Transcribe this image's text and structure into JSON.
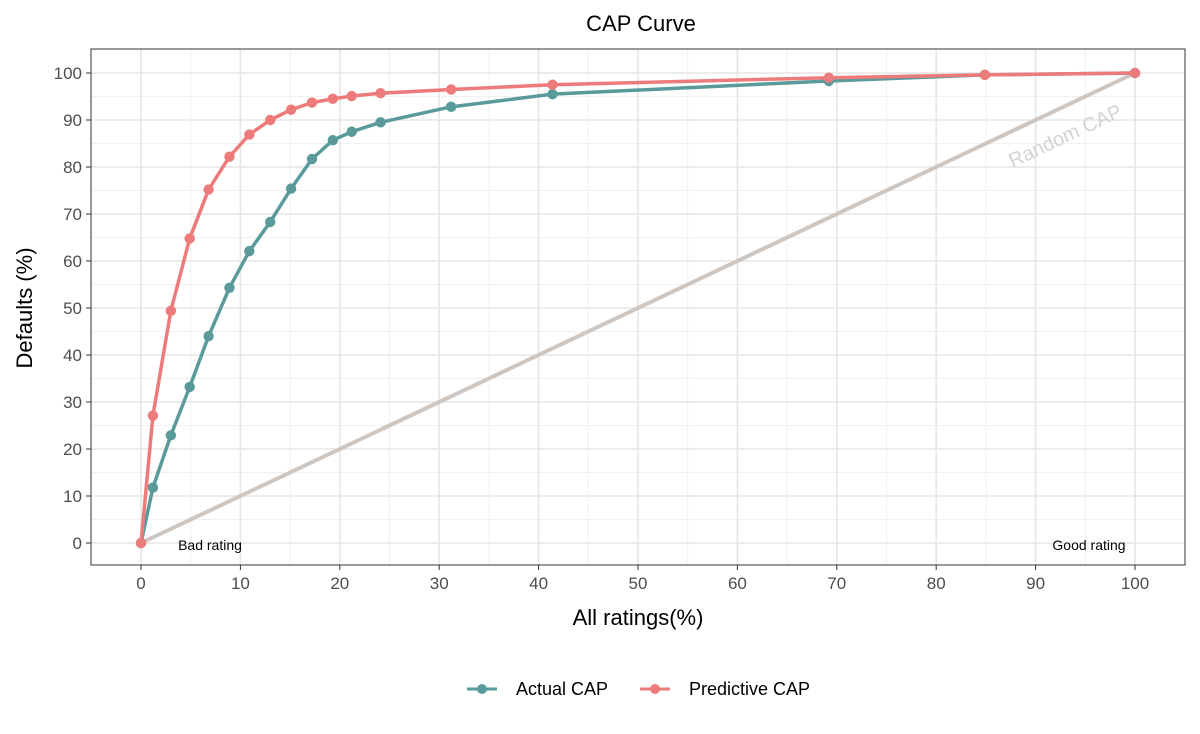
{
  "chart_data": {
    "type": "line",
    "title": "CAP Curve",
    "xlabel": "All ratings(%)",
    "ylabel": "Defaults (%)",
    "xlim": [
      0,
      100
    ],
    "ylim": [
      0,
      100
    ],
    "x_ticks": [
      0,
      10,
      20,
      30,
      40,
      50,
      60,
      70,
      80,
      90,
      100
    ],
    "y_ticks": [
      0,
      10,
      20,
      30,
      40,
      50,
      60,
      70,
      80,
      90,
      100
    ],
    "grid": true,
    "legend_position": "bottom",
    "series": [
      {
        "name": "Actual CAP",
        "color": "#5a9a9a",
        "x": [
          0,
          1.2,
          3.0,
          4.9,
          6.8,
          8.9,
          10.9,
          13.0,
          15.1,
          17.2,
          19.3,
          21.2,
          24.1,
          31.2,
          41.4,
          69.2,
          84.9,
          100
        ],
        "y": [
          0,
          11.8,
          22.9,
          33.2,
          44.0,
          54.3,
          62.1,
          68.3,
          75.4,
          81.7,
          85.7,
          87.5,
          89.5,
          92.8,
          95.5,
          98.3,
          99.6,
          100
        ]
      },
      {
        "name": "Predictive CAP",
        "color": "#ee7b7b",
        "x": [
          0,
          1.2,
          3.0,
          4.9,
          6.8,
          8.9,
          10.9,
          13.0,
          15.1,
          17.2,
          19.3,
          21.2,
          24.1,
          31.2,
          41.4,
          69.2,
          84.9,
          100
        ],
        "y": [
          0,
          27.1,
          49.4,
          64.8,
          75.2,
          82.2,
          86.9,
          90.0,
          92.2,
          93.7,
          94.5,
          95.1,
          95.7,
          96.5,
          97.5,
          99.0,
          99.6,
          100
        ]
      }
    ],
    "reference_line": {
      "name": "Random CAP",
      "color": "#cdc6c1",
      "x": [
        0,
        100
      ],
      "y": [
        0,
        100
      ]
    },
    "annotations": {
      "bad_rating": "Bad rating",
      "good_rating": "Good rating",
      "random_cap": "Random CAP"
    }
  }
}
